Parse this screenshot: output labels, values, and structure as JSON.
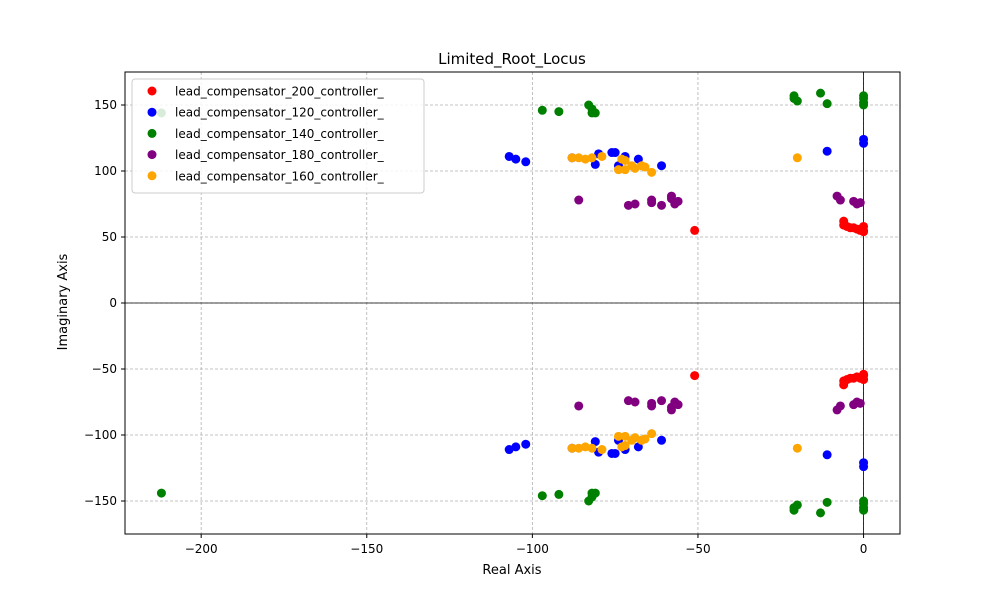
{
  "chart_data": {
    "type": "scatter",
    "title": "Limited_Root_Locus",
    "xlabel": "Real Axis",
    "ylabel": "Imaginary Axis",
    "xlim": [
      -223,
      11
    ],
    "ylim": [
      -175,
      175
    ],
    "xticks": [
      -200,
      -150,
      -100,
      -50,
      0
    ],
    "yticks": [
      -150,
      -100,
      -50,
      0,
      50,
      100,
      150
    ],
    "xtick_labels": [
      "−200",
      "−150",
      "−100",
      "−50",
      "0"
    ],
    "ytick_labels": [
      "−150",
      "−100",
      "−50",
      "0",
      "50",
      "100",
      "150"
    ],
    "grid": true,
    "legend_position": "upper-left",
    "series": [
      {
        "name": "lead_compensator_200_controller_",
        "color": "#ff0000",
        "points": [
          [
            -51,
            55
          ],
          [
            -6,
            62
          ],
          [
            -6,
            59
          ],
          [
            -5,
            58
          ],
          [
            -4,
            57
          ],
          [
            -3,
            57
          ],
          [
            -2,
            56
          ],
          [
            -1,
            56
          ],
          [
            -1,
            55
          ],
          [
            0,
            58
          ],
          [
            0,
            55
          ],
          [
            0,
            54
          ],
          [
            -51,
            -55
          ],
          [
            -6,
            -62
          ],
          [
            -6,
            -59
          ],
          [
            -5,
            -58
          ],
          [
            -4,
            -57
          ],
          [
            -3,
            -57
          ],
          [
            -2,
            -56
          ],
          [
            -1,
            -57
          ],
          [
            0,
            -58
          ],
          [
            0,
            -55
          ],
          [
            0,
            -54
          ]
        ]
      },
      {
        "name": "lead_compensator_120_controller_",
        "color": "#0000ff",
        "points": [
          [
            -107,
            111
          ],
          [
            -105,
            109
          ],
          [
            -102,
            107
          ],
          [
            -88,
            110
          ],
          [
            -81,
            105
          ],
          [
            -80,
            113
          ],
          [
            -76,
            114
          ],
          [
            -75,
            114
          ],
          [
            -74,
            104
          ],
          [
            -72,
            111
          ],
          [
            -68,
            109
          ],
          [
            -61,
            104
          ],
          [
            -11,
            115
          ],
          [
            0,
            124
          ],
          [
            0,
            121
          ],
          [
            -107,
            -111
          ],
          [
            -105,
            -109
          ],
          [
            -102,
            -107
          ],
          [
            -88,
            -110
          ],
          [
            -81,
            -105
          ],
          [
            -80,
            -113
          ],
          [
            -76,
            -114
          ],
          [
            -75,
            -114
          ],
          [
            -74,
            -104
          ],
          [
            -72,
            -111
          ],
          [
            -68,
            -109
          ],
          [
            -61,
            -104
          ],
          [
            -11,
            -115
          ],
          [
            0,
            -124
          ],
          [
            0,
            -121
          ]
        ]
      },
      {
        "name": "lead_compensator_140_controller_",
        "color": "#008000",
        "points": [
          [
            -212,
            144
          ],
          [
            -97,
            146
          ],
          [
            -92,
            145
          ],
          [
            -83,
            150
          ],
          [
            -82,
            147
          ],
          [
            -82,
            144
          ],
          [
            -81,
            144
          ],
          [
            -21,
            157
          ],
          [
            -21,
            155
          ],
          [
            -20,
            153
          ],
          [
            -13,
            159
          ],
          [
            -11,
            151
          ],
          [
            0,
            157
          ],
          [
            0,
            155
          ],
          [
            0,
            152
          ],
          [
            0,
            150
          ],
          [
            -212,
            -144
          ],
          [
            -97,
            -146
          ],
          [
            -92,
            -145
          ],
          [
            -83,
            -150
          ],
          [
            -82,
            -147
          ],
          [
            -82,
            -144
          ],
          [
            -81,
            -144
          ],
          [
            -21,
            -157
          ],
          [
            -21,
            -155
          ],
          [
            -20,
            -153
          ],
          [
            -13,
            -159
          ],
          [
            -11,
            -151
          ],
          [
            0,
            -157
          ],
          [
            0,
            -155
          ],
          [
            0,
            -152
          ],
          [
            0,
            -150
          ]
        ]
      },
      {
        "name": "lead_compensator_180_controller_",
        "color": "#800080",
        "points": [
          [
            -86,
            78
          ],
          [
            -71,
            74
          ],
          [
            -69,
            75
          ],
          [
            -64,
            78
          ],
          [
            -64,
            76
          ],
          [
            -61,
            74
          ],
          [
            -58,
            81
          ],
          [
            -58,
            79
          ],
          [
            -57,
            75
          ],
          [
            -56,
            77
          ],
          [
            -8,
            81
          ],
          [
            -7,
            78
          ],
          [
            -3,
            77
          ],
          [
            -2,
            75
          ],
          [
            -1,
            76
          ],
          [
            -86,
            -78
          ],
          [
            -71,
            -74
          ],
          [
            -69,
            -75
          ],
          [
            -64,
            -78
          ],
          [
            -64,
            -76
          ],
          [
            -61,
            -74
          ],
          [
            -58,
            -81
          ],
          [
            -58,
            -79
          ],
          [
            -57,
            -75
          ],
          [
            -56,
            -77
          ],
          [
            -8,
            -81
          ],
          [
            -7,
            -78
          ],
          [
            -3,
            -77
          ],
          [
            -2,
            -75
          ],
          [
            -1,
            -76
          ]
        ]
      },
      {
        "name": "lead_compensator_160_controller_",
        "color": "#ffa500",
        "points": [
          [
            -88,
            110
          ],
          [
            -86,
            110
          ],
          [
            -84,
            109
          ],
          [
            -82,
            110
          ],
          [
            -79,
            111
          ],
          [
            -74,
            101
          ],
          [
            -73,
            109
          ],
          [
            -72,
            101
          ],
          [
            -72,
            108
          ],
          [
            -70,
            104
          ],
          [
            -69,
            102
          ],
          [
            -67,
            104
          ],
          [
            -66,
            103
          ],
          [
            -64,
            99
          ],
          [
            -20,
            110
          ],
          [
            -88,
            -110
          ],
          [
            -86,
            -110
          ],
          [
            -84,
            -109
          ],
          [
            -82,
            -110
          ],
          [
            -79,
            -111
          ],
          [
            -74,
            -101
          ],
          [
            -73,
            -109
          ],
          [
            -72,
            -101
          ],
          [
            -72,
            -108
          ],
          [
            -70,
            -104
          ],
          [
            -69,
            -102
          ],
          [
            -67,
            -104
          ],
          [
            -66,
            -103
          ],
          [
            -64,
            -99
          ],
          [
            -20,
            -110
          ]
        ]
      }
    ]
  }
}
